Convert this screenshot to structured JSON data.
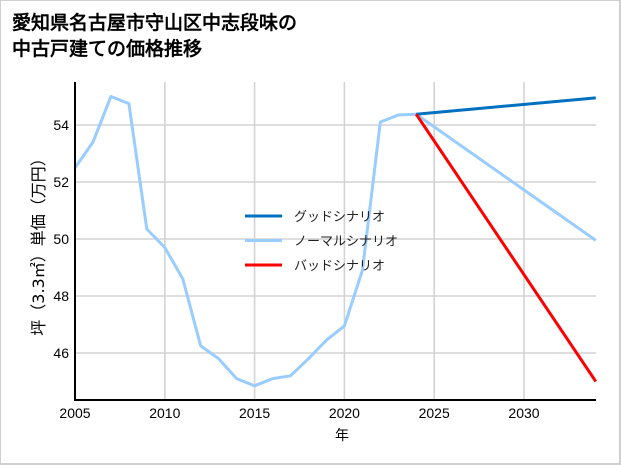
{
  "title_line1": "愛知県名古屋市守山区中志段味の",
  "title_line2": "中古戸建ての価格推移",
  "chart_data": {
    "type": "line",
    "title": "愛知県名古屋市守山区中志段味の中古戸建ての価格推移",
    "xlabel": "年",
    "ylabel": "坪（3.3㎡）単価（万円）",
    "xlim": [
      2005,
      2034
    ],
    "ylim": [
      44.5,
      55.5
    ],
    "xticks": [
      2005,
      2010,
      2015,
      2020,
      2025,
      2030
    ],
    "yticks": [
      46,
      48,
      50,
      52,
      54
    ],
    "grid": true,
    "legend_position": "center",
    "series": [
      {
        "name": "ノーマルシナリオ",
        "color": "#99ccff",
        "x": [
          2005,
          2006,
          2007,
          2008,
          2009,
          2010,
          2011,
          2012,
          2013,
          2014,
          2015,
          2016,
          2017,
          2018,
          2019,
          2020,
          2021,
          2022,
          2023,
          2024,
          2034
        ],
        "values": [
          52.5,
          53.4,
          55.0,
          54.75,
          50.35,
          49.7,
          48.6,
          46.25,
          45.8,
          45.1,
          44.85,
          45.1,
          45.2,
          45.8,
          46.45,
          46.95,
          48.9,
          54.1,
          54.35,
          54.38,
          49.95
        ]
      },
      {
        "name": "グッドシナリオ",
        "color": "#0070c0",
        "x": [
          2024,
          2034
        ],
        "values": [
          54.38,
          54.95
        ]
      },
      {
        "name": "バッドシナリオ",
        "color": "#ff0000",
        "x": [
          2024,
          2034
        ],
        "values": [
          54.38,
          45.0
        ]
      }
    ],
    "legend": [
      "グッドシナリオ",
      "ノーマルシナリオ",
      "バッドシナリオ"
    ]
  },
  "axis": {
    "x_ticks": [
      "2005",
      "2010",
      "2015",
      "2020",
      "2025",
      "2030"
    ],
    "y_ticks": [
      "54",
      "52",
      "50",
      "48",
      "46"
    ],
    "xlabel": "年",
    "ylabel": "坪（3.3㎡）単価（万円）"
  },
  "legend": [
    {
      "label": "グッドシナリオ",
      "color": "#0070c0"
    },
    {
      "label": "ノーマルシナリオ",
      "color": "#99ccff"
    },
    {
      "label": "バッドシナリオ",
      "color": "#ff0000"
    }
  ]
}
